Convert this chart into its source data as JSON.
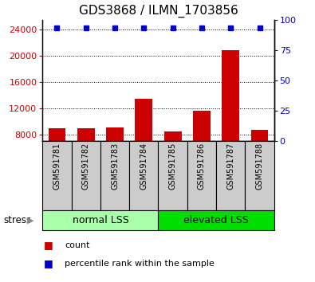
{
  "title": "GDS3868 / ILMN_1703856",
  "categories": [
    "GSM591781",
    "GSM591782",
    "GSM591783",
    "GSM591784",
    "GSM591785",
    "GSM591786",
    "GSM591787",
    "GSM591788"
  ],
  "bar_values": [
    8900,
    9000,
    9100,
    13400,
    8500,
    11600,
    20800,
    8700
  ],
  "ylim_left": [
    7000,
    25500
  ],
  "ylim_right": [
    0,
    100
  ],
  "yticks_left": [
    8000,
    12000,
    16000,
    20000,
    24000
  ],
  "yticks_right": [
    0,
    25,
    50,
    75,
    100
  ],
  "bar_color": "#cc0000",
  "percentile_color": "#0000cc",
  "group1_label": "normal LSS",
  "group2_label": "elevated LSS",
  "group1_indices": [
    0,
    1,
    2,
    3
  ],
  "group2_indices": [
    4,
    5,
    6,
    7
  ],
  "stress_label": "stress",
  "legend_count_label": "count",
  "legend_percentile_label": "percentile rank within the sample",
  "xticklabel_area_color": "#cccccc",
  "group_box_color_normal": "#aaffaa",
  "group_box_color_elevated": "#00dd00",
  "title_fontsize": 11,
  "tick_fontsize": 8,
  "label_fontsize": 7,
  "group_fontsize": 9,
  "legend_fontsize": 8
}
